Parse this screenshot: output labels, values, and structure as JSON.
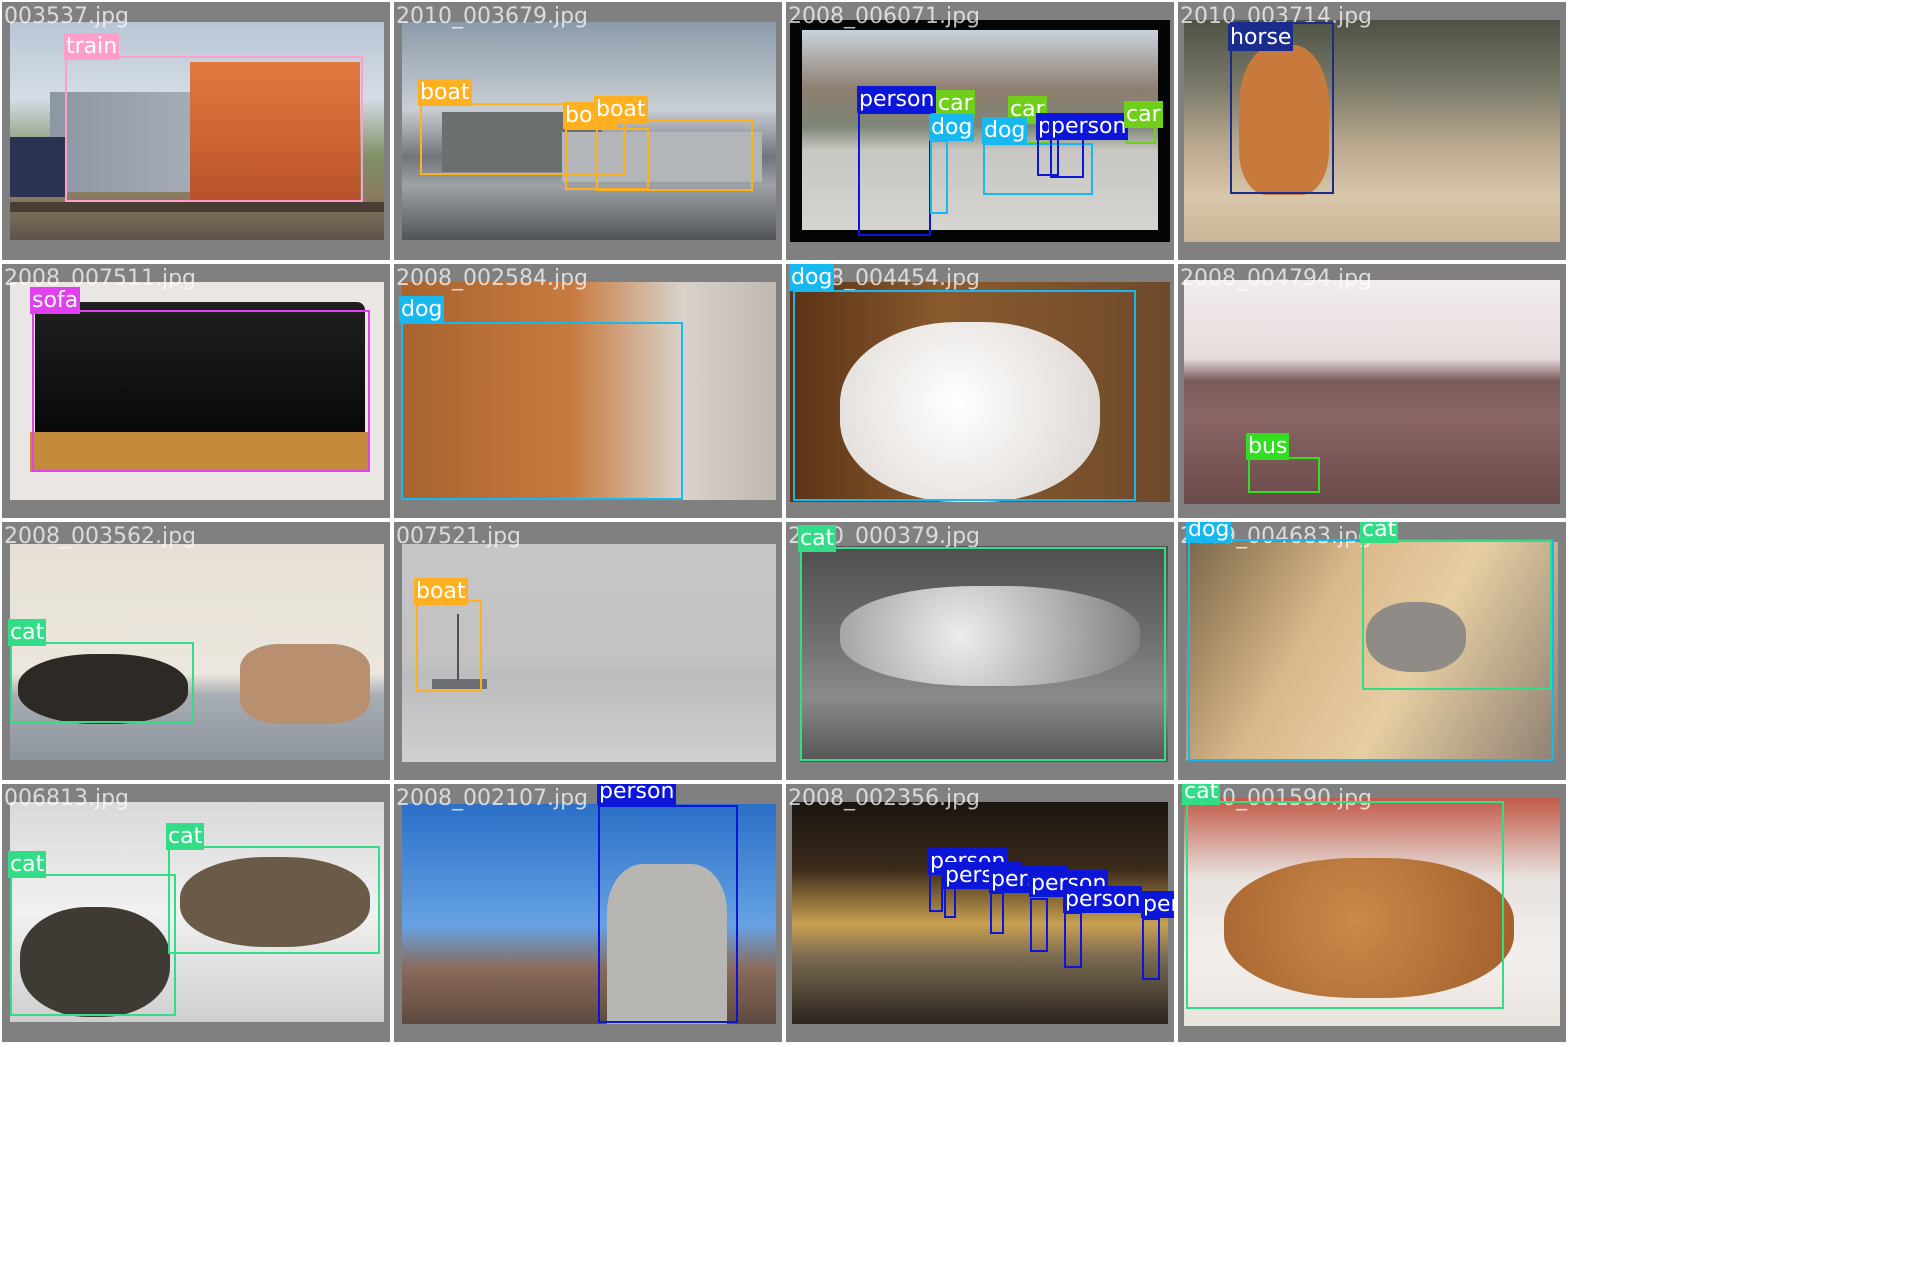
{
  "colors": {
    "train": "#ff9ec8",
    "boat": "#ffb020",
    "person": "#0c16d8",
    "car": "#6fcf1a",
    "dog": "#17b8f0",
    "horse": "#1a2c8c",
    "sofa": "#e040f0",
    "bus": "#33dd22",
    "cat": "#33dd88"
  },
  "tiles": [
    {
      "file": "003537.jpg",
      "detections": [
        {
          "label": "train"
        }
      ]
    },
    {
      "file": "2010_003679.jpg",
      "detections": [
        {
          "label": "boat"
        },
        {
          "label": "boat"
        },
        {
          "label": "boat"
        }
      ]
    },
    {
      "file": "2008_006071.jpg",
      "detections": [
        {
          "label": "person"
        },
        {
          "label": "car"
        },
        {
          "label": "dog"
        },
        {
          "label": "car"
        },
        {
          "label": "dog"
        },
        {
          "label": "person"
        },
        {
          "label": "person"
        },
        {
          "label": "car"
        }
      ]
    },
    {
      "file": "2010_003714.jpg",
      "detections": [
        {
          "label": "horse"
        }
      ]
    },
    {
      "file": "2008_007511.jpg",
      "detections": [
        {
          "label": "sofa"
        }
      ]
    },
    {
      "file": "2008_002584.jpg",
      "detections": [
        {
          "label": "dog"
        }
      ]
    },
    {
      "file": "2008_004454.jpg",
      "detections": [
        {
          "label": "dog"
        }
      ]
    },
    {
      "file": "2008_004794.jpg",
      "detections": [
        {
          "label": "bus"
        }
      ]
    },
    {
      "file": "2008_003562.jpg",
      "detections": [
        {
          "label": "cat"
        }
      ]
    },
    {
      "file": "007521.jpg",
      "detections": [
        {
          "label": "boat"
        }
      ]
    },
    {
      "file": "2010_000379.jpg",
      "detections": [
        {
          "label": "cat"
        }
      ]
    },
    {
      "file": "2009_004683.jpg",
      "detections": [
        {
          "label": "dog"
        },
        {
          "label": "cat"
        }
      ]
    },
    {
      "file": "006813.jpg",
      "detections": [
        {
          "label": "cat"
        },
        {
          "label": "cat"
        }
      ]
    },
    {
      "file": "2008_002107.jpg",
      "detections": [
        {
          "label": "person"
        }
      ]
    },
    {
      "file": "2008_002356.jpg",
      "detections": [
        {
          "label": "person"
        },
        {
          "label": "person"
        },
        {
          "label": "person"
        },
        {
          "label": "person"
        },
        {
          "label": "person"
        },
        {
          "label": "person"
        }
      ]
    },
    {
      "file": "2010_001590.jpg",
      "detections": [
        {
          "label": "cat"
        }
      ]
    }
  ]
}
